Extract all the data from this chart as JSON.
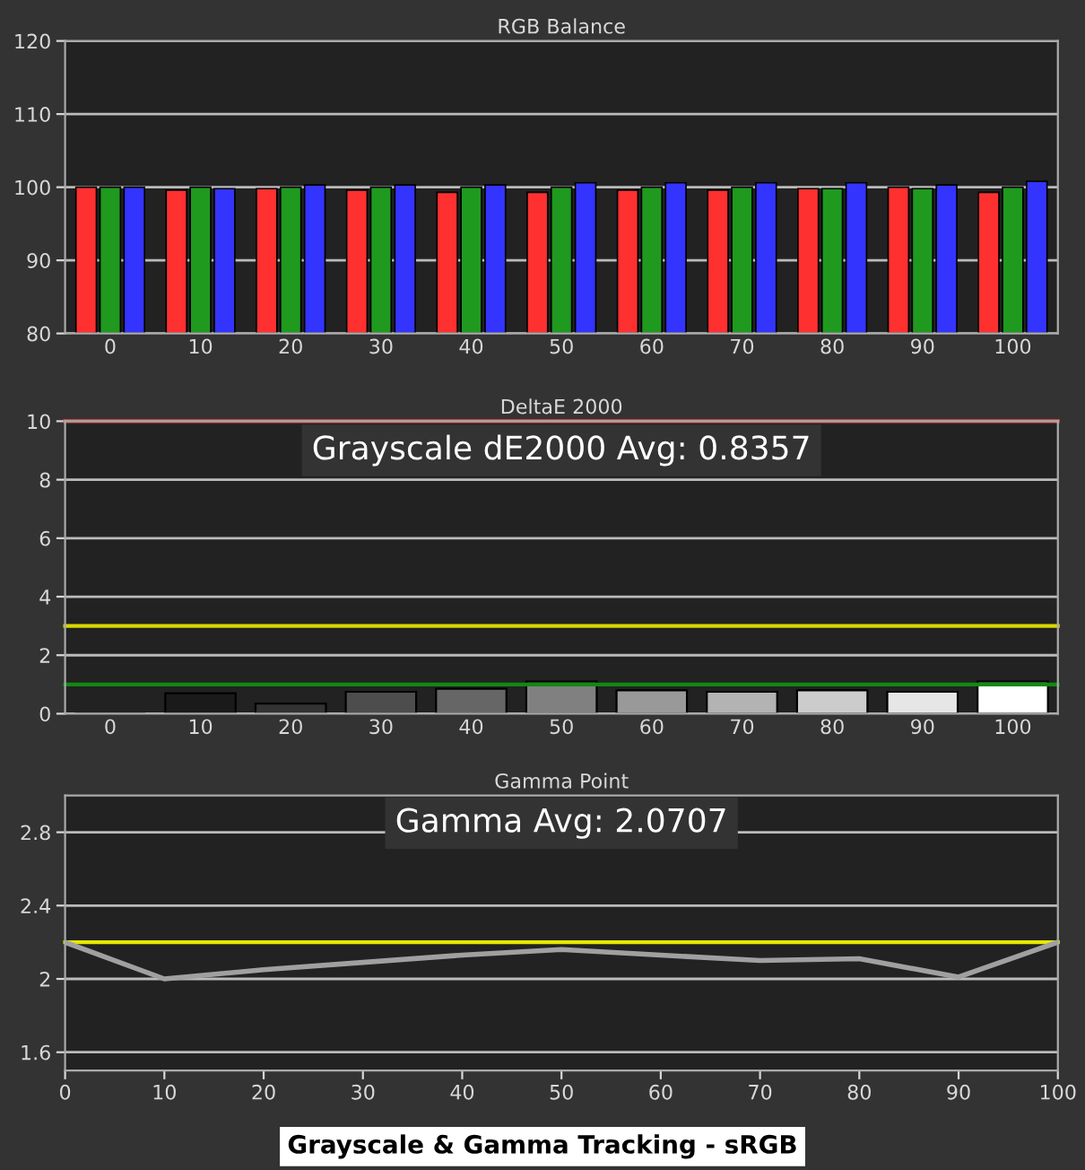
{
  "chart_data": [
    {
      "type": "bar",
      "title": "RGB Balance",
      "categories": [
        "0",
        "10",
        "20",
        "30",
        "40",
        "50",
        "60",
        "70",
        "80",
        "90",
        "100"
      ],
      "series": [
        {
          "color": "#ff3030",
          "values": [
            100,
            99.6,
            99.8,
            99.6,
            99.3,
            99.3,
            99.6,
            99.6,
            99.8,
            100,
            99.3
          ]
        },
        {
          "color": "#1f9a1f",
          "values": [
            100,
            100,
            100,
            100,
            100,
            100,
            100,
            100,
            99.8,
            99.8,
            100
          ]
        },
        {
          "color": "#3434ff",
          "values": [
            100,
            99.8,
            100.3,
            100.3,
            100.3,
            100.6,
            100.6,
            100.6,
            100.6,
            100.3,
            100.8
          ]
        }
      ],
      "ylim": [
        80,
        120
      ],
      "yticks": [
        80,
        90,
        100,
        110,
        120
      ],
      "grid": "y"
    },
    {
      "type": "bar",
      "title": "DeltaE 2000",
      "categories": [
        "0",
        "10",
        "20",
        "30",
        "40",
        "50",
        "60",
        "70",
        "80",
        "90",
        "100"
      ],
      "values": [
        0,
        0.7,
        0.35,
        0.75,
        0.85,
        1.1,
        0.8,
        0.75,
        0.8,
        0.75,
        1.1
      ],
      "colors": [
        "#000000",
        "#1a1a1a",
        "#333333",
        "#4d4d4d",
        "#666666",
        "#808080",
        "#999999",
        "#b3b3b3",
        "#cccccc",
        "#e6e6e6",
        "#ffffff"
      ],
      "ylim": [
        0,
        10
      ],
      "yticks": [
        0,
        2,
        4,
        6,
        8,
        10
      ],
      "grid": "y",
      "ref_lines": [
        {
          "axis": "y",
          "value": 10,
          "color": "#e05050"
        },
        {
          "axis": "y",
          "value": 3,
          "color": "#d8d800"
        },
        {
          "axis": "y",
          "value": 1,
          "color": "#108a10"
        }
      ],
      "annotations": [
        "Grayscale dE2000 Avg: 0.8357"
      ]
    },
    {
      "type": "line",
      "title": "Gamma Point",
      "x": [
        0,
        10,
        20,
        30,
        40,
        50,
        60,
        70,
        80,
        90,
        100
      ],
      "series": [
        {
          "color": "#a0a0a0",
          "values": [
            2.2,
            2.0,
            2.05,
            2.09,
            2.13,
            2.16,
            2.13,
            2.1,
            2.11,
            2.01,
            2.2
          ]
        }
      ],
      "xlim": [
        0,
        100
      ],
      "xticks": [
        0,
        10,
        20,
        30,
        40,
        50,
        60,
        70,
        80,
        90,
        100
      ],
      "ylim": [
        1.5,
        3.0
      ],
      "yticks": [
        1.6,
        {
          "value": 2,
          "label": "2"
        },
        2.4,
        2.8
      ],
      "grid": "y",
      "ref_lines": [
        {
          "axis": "y",
          "value": 2.2,
          "color": "#e8e800"
        }
      ],
      "annotations": [
        "Gamma Avg: 2.0707",
        "Grayscale & Gamma Tracking - sRGB"
      ]
    }
  ]
}
